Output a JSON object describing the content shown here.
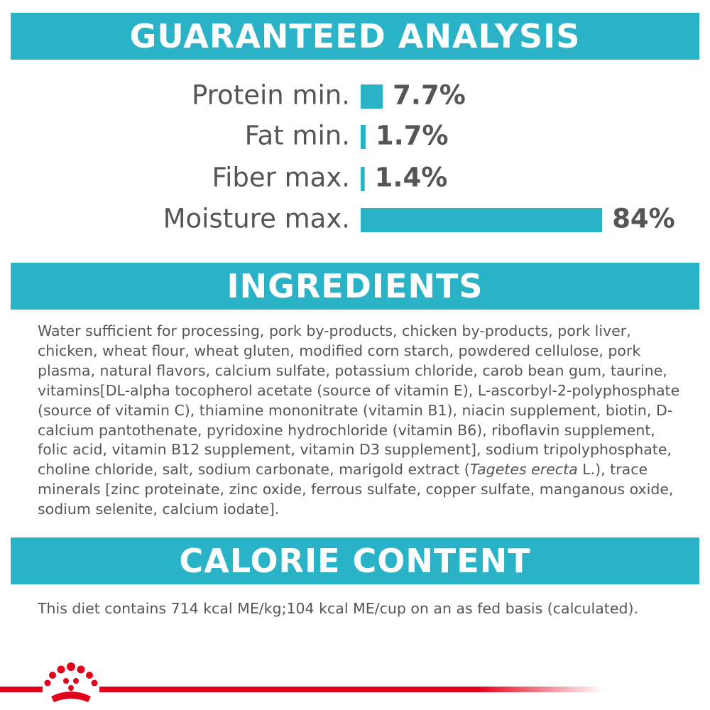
{
  "guaranteed_analysis": {
    "title": "GUARANTEED ANALYSIS",
    "categories": [
      "Protein min.",
      "Fat min.",
      "Fiber max.",
      "Moisture max."
    ],
    "values": [
      7.7,
      1.7,
      1.4,
      84
    ],
    "value_labels": [
      "7.7%",
      "1.7%",
      "1.4%",
      "84%"
    ],
    "color": "#2ab3c7"
  },
  "ingredients": {
    "title": "INGREDIENTS",
    "text": [
      "Water sufficient for processing, pork by-products, chicken by-products, pork liver, chicken, wheat flour, wheat gluten, modified corn starch, powdered cellulose, pork plasma, natural flavors, calcium sulfate, potassium chloride, carob bean gum, taurine, vitamins[DL-alpha tocopherol acetate (source of vitamin E), L-ascorbyl-2-polyphosphate (source of vitamin C), thiamine mononitrate (vitamin B1), niacin supplement, biotin, D-calcium pantothenate, pyridoxine hydrochloride (vitamin B6), riboflavin supplement, folic acid, vitamin B12 supplement, vitamin D3 supplement], sodium tripolyphosphate, choline chloride, salt, sodium carbonate, marigold extract (",
      "Tagetes erecta",
      " L.), trace minerals [zinc proteinate, zinc oxide, ferrous sulfate, copper sulfate, manganous oxide, sodium selenite, calcium iodate]."
    ]
  },
  "calorie_content": {
    "title": "CALORIE CONTENT",
    "text": "This diet contains 714 kcal ME/kg;104 kcal ME/cup on an as fed basis (calculated)."
  }
}
